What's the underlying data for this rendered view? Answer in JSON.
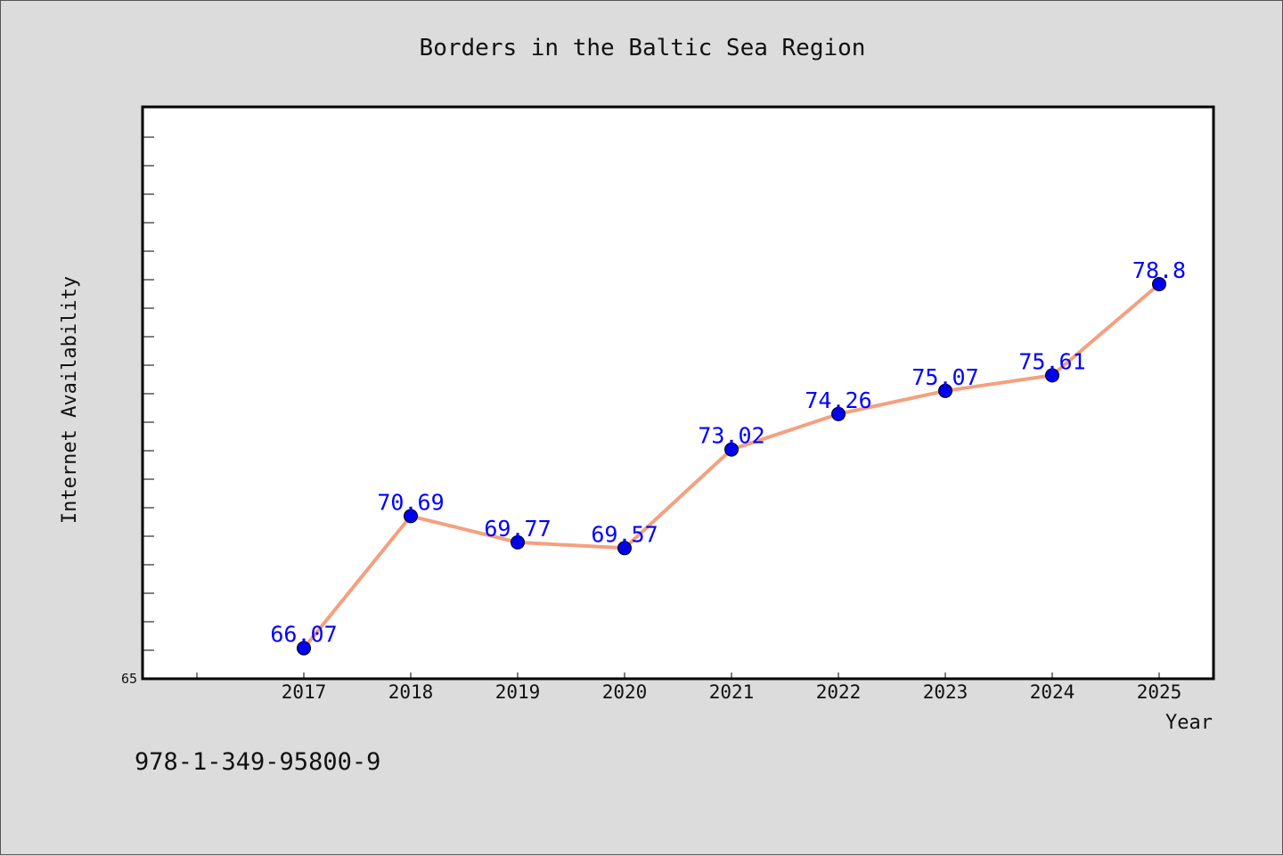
{
  "chart_data": {
    "type": "line",
    "title": "Borders in the Baltic Sea Region",
    "xlabel": "Year",
    "ylabel": "Internet Availability",
    "categories": [
      "2017",
      "2018",
      "2019",
      "2020",
      "2021",
      "2022",
      "2023",
      "2024",
      "2025"
    ],
    "series": [
      {
        "values": [
          66.07,
          70.69,
          69.77,
          69.57,
          73.02,
          74.26,
          75.07,
          75.61,
          78.8
        ]
      }
    ],
    "data_labels": [
      "66.07",
      "70.69",
      "69.77",
      "69.57",
      "73.02",
      "74.26",
      "75.07",
      "75.61",
      "78.8"
    ],
    "ylim": [
      65,
      85
    ],
    "y_tick_label": "65",
    "grid": false,
    "line_color": "#f4a07f",
    "marker_color": "#0000ee",
    "label_color": "#0000ff"
  },
  "footer": {
    "isbn": "978-1-349-95800-9"
  }
}
